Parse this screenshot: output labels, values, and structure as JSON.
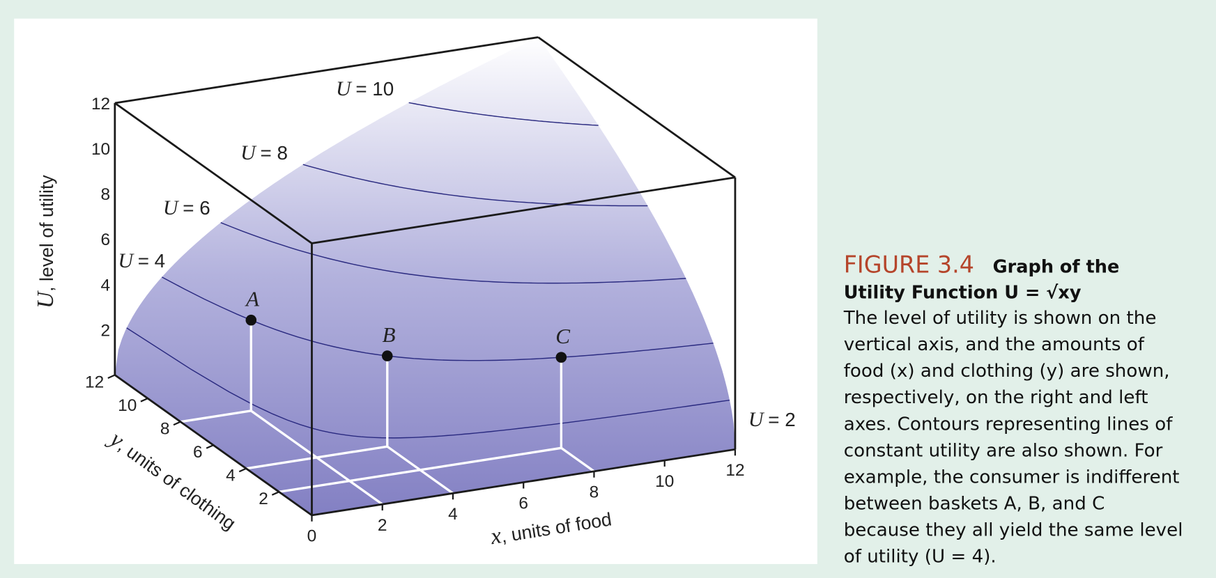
{
  "figure": {
    "u_axis": {
      "var": "U",
      "label": ", level of utility",
      "ticks": [
        2,
        4,
        6,
        8,
        10,
        12
      ]
    },
    "y_axis": {
      "var": "y",
      "label": ", units of clothing",
      "ticks": [
        2,
        4,
        6,
        8,
        10,
        12
      ]
    },
    "x_axis": {
      "var": "x",
      "label": ", units of food",
      "ticks": [
        0,
        2,
        4,
        6,
        8,
        10,
        12
      ]
    },
    "contours": [
      {
        "var": "U",
        "label": "= 2"
      },
      {
        "var": "U",
        "label": "= 4"
      },
      {
        "var": "U",
        "label": "= 6"
      },
      {
        "var": "U",
        "label": "= 8"
      },
      {
        "var": "U",
        "label": "= 10"
      }
    ],
    "points": [
      "A",
      "B",
      "C"
    ]
  },
  "caption": {
    "number": "FIGURE 3.4",
    "title": [
      "Graph of the",
      "Utility Function U = √xy"
    ],
    "body": [
      "The level of utility is shown on the",
      "vertical axis, and the amounts of",
      "food (x) and clothing (y) are shown,",
      "respectively, on the right and left",
      "axes. Contours representing lines of",
      "constant utility are also shown. For",
      "example, the consumer is indifferent",
      "between baskets A, B, and C",
      "because they all yield the same level",
      "of utility (U = 4)."
    ]
  }
}
